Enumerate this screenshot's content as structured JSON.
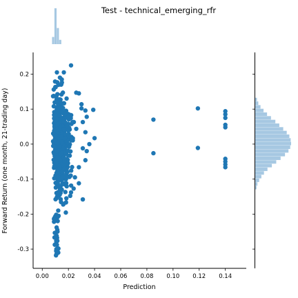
{
  "chart_data": {
    "type": "scatter",
    "title": "Test - technical_emerging_rfr",
    "xlabel": "Prediction",
    "ylabel": "Forward Return (one month, 21-trading day)",
    "xlim": [
      -0.007,
      0.156
    ],
    "ylim": [
      -0.355,
      0.262
    ],
    "xticks": [
      "0.00",
      "0.02",
      "0.04",
      "0.06",
      "0.08",
      "0.10",
      "0.12",
      "0.14"
    ],
    "yticks": [
      "-0.3",
      "-0.2",
      "-0.1",
      "0.0",
      "0.1",
      "0.2"
    ],
    "point_color": "#1f77b4",
    "hist_color": "#a6c8e2",
    "outliers": [
      {
        "x": 0.085,
        "y": 0.07
      },
      {
        "x": 0.085,
        "y": -0.026
      },
      {
        "x": 0.119,
        "y": 0.102
      },
      {
        "x": 0.119,
        "y": -0.011
      },
      {
        "x": 0.14,
        "y": 0.094
      },
      {
        "x": 0.14,
        "y": 0.085
      },
      {
        "x": 0.14,
        "y": 0.075
      },
      {
        "x": 0.14,
        "y": 0.055
      },
      {
        "x": 0.14,
        "y": 0.048
      },
      {
        "x": 0.14,
        "y": -0.042
      },
      {
        "x": 0.14,
        "y": -0.05
      },
      {
        "x": 0.14,
        "y": -0.058
      },
      {
        "x": 0.14,
        "y": -0.066
      }
    ],
    "mid_points": [
      {
        "x": 0.022,
        "y": 0.225
      },
      {
        "x": 0.026,
        "y": 0.147
      },
      {
        "x": 0.028,
        "y": 0.145
      },
      {
        "x": 0.03,
        "y": 0.102
      },
      {
        "x": 0.03,
        "y": 0.114
      },
      {
        "x": 0.033,
        "y": 0.096
      },
      {
        "x": 0.039,
        "y": 0.098
      },
      {
        "x": 0.034,
        "y": 0.078
      },
      {
        "x": 0.031,
        "y": 0.063
      },
      {
        "x": 0.033,
        "y": 0.034
      },
      {
        "x": 0.04,
        "y": 0.017
      },
      {
        "x": 0.036,
        "y": 0.0
      },
      {
        "x": 0.031,
        "y": -0.012
      },
      {
        "x": 0.034,
        "y": -0.02
      },
      {
        "x": 0.033,
        "y": -0.046
      },
      {
        "x": 0.028,
        "y": -0.066
      },
      {
        "x": 0.025,
        "y": -0.095
      },
      {
        "x": 0.028,
        "y": -0.112
      },
      {
        "x": 0.031,
        "y": -0.158
      },
      {
        "x": 0.024,
        "y": -0.127
      },
      {
        "x": 0.022,
        "y": -0.138
      }
    ],
    "cluster": {
      "x_range": [
        0.008,
        0.026
      ],
      "y_max": 0.205,
      "y_min": -0.318,
      "count": 700
    },
    "top_histogram": {
      "bin_edges": [
        0.0075,
        0.0093,
        0.0111,
        0.0129,
        0.0147
      ],
      "heights": [
        0.2,
        1.0,
        0.45,
        0.12
      ]
    },
    "right_histogram": {
      "bin_start": -0.13,
      "bin_width": 0.0105,
      "counts": [
        3,
        5,
        9,
        14,
        20,
        28,
        38,
        48,
        58,
        68,
        76,
        80,
        82,
        81,
        78,
        72,
        64,
        55,
        46,
        36,
        27,
        19,
        12,
        7,
        4
      ]
    }
  }
}
